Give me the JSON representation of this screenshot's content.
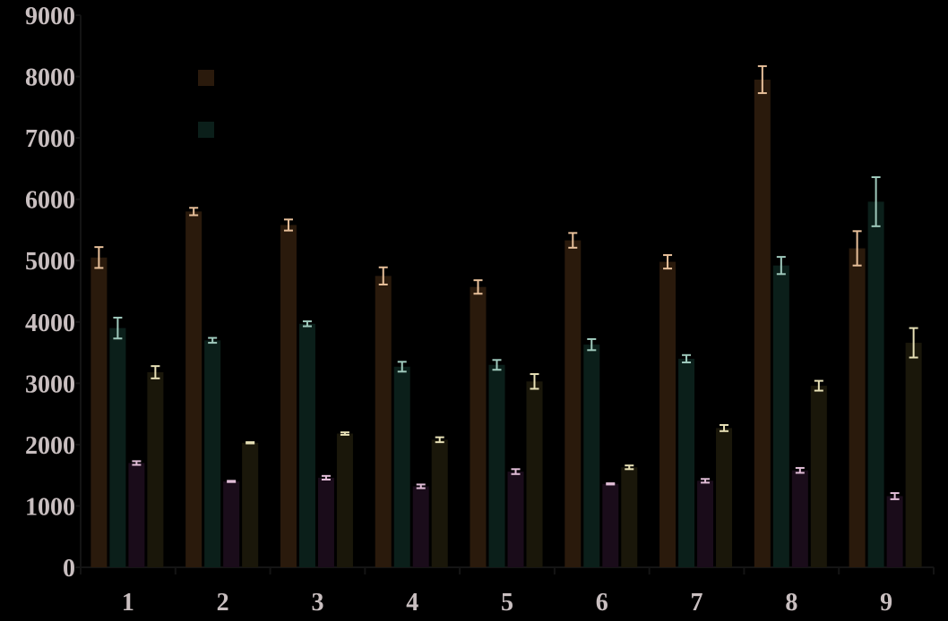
{
  "chart_data": {
    "type": "bar",
    "title": "",
    "xlabel": "",
    "ylabel": "",
    "ylim": [
      0,
      9000
    ],
    "yticks": [
      "0",
      "1000",
      "2000",
      "3000",
      "4000",
      "5000",
      "6000",
      "7000",
      "8000",
      "9000"
    ],
    "categories": [
      "1",
      "2",
      "3",
      "4",
      "5",
      "6",
      "7",
      "8",
      "9"
    ],
    "grid": false,
    "legend": "top-left",
    "series": [
      {
        "color": "#2a1a0c",
        "error_color": "#e8c09a",
        "values": [
          5050,
          5800,
          5580,
          4750,
          4570,
          5330,
          4980,
          7950,
          5200
        ],
        "errors": [
          170,
          60,
          90,
          140,
          110,
          120,
          110,
          220,
          280
        ]
      },
      {
        "color": "#0b1f1a",
        "error_color": "#9fc9bc",
        "values": [
          3900,
          3700,
          3970,
          3270,
          3300,
          3630,
          3400,
          4920,
          5960
        ],
        "errors": [
          170,
          40,
          40,
          80,
          80,
          90,
          60,
          140,
          400
        ]
      },
      {
        "color": "#1a0c1a",
        "error_color": "#e0bdd6",
        "values": [
          1700,
          1400,
          1460,
          1320,
          1560,
          1360,
          1410,
          1580,
          1160
        ],
        "errors": [
          30,
          10,
          30,
          30,
          40,
          10,
          30,
          40,
          50
        ]
      },
      {
        "color": "#1a170a",
        "error_color": "#e7e0b6",
        "values": [
          3180,
          2030,
          2180,
          2080,
          3030,
          1630,
          2270,
          2960,
          3660
        ],
        "errors": [
          100,
          10,
          20,
          40,
          120,
          30,
          50,
          80,
          240
        ]
      }
    ],
    "colors": {
      "background": "#000000",
      "axis": "#141414",
      "tick_label": "#c9bfc0"
    }
  }
}
